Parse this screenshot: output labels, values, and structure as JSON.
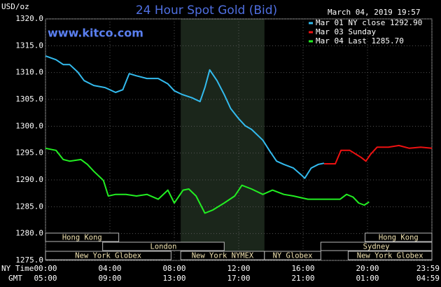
{
  "chart_data": {
    "type": "line",
    "title": "24 Hour Spot Gold (Bid)",
    "ylabel": "USD/oz",
    "timestamp": "March 04, 2019 19:57",
    "watermark": "www.kitco.com",
    "xaxis_label": "NY Time",
    "x2axis_label": "GMT",
    "xlim": [
      0,
      24
    ],
    "ylim": [
      1275,
      1320
    ],
    "yticks": [
      {
        "value": 1275,
        "label": "1275.0"
      },
      {
        "value": 1280,
        "label": "1280.0"
      },
      {
        "value": 1285,
        "label": "1285.0"
      },
      {
        "value": 1290,
        "label": "1290.0"
      },
      {
        "value": 1295,
        "label": "1295.0"
      },
      {
        "value": 1300,
        "label": "1300.0"
      },
      {
        "value": 1305,
        "label": "1305.0"
      },
      {
        "value": 1310,
        "label": "1310.0"
      },
      {
        "value": 1315,
        "label": "1315.0"
      },
      {
        "value": 1320,
        "label": "1320.0"
      }
    ],
    "xticks": [
      {
        "value": 0,
        "label": "00:00"
      },
      {
        "value": 4,
        "label": "04:00"
      },
      {
        "value": 8,
        "label": "08:00"
      },
      {
        "value": 12,
        "label": "12:00"
      },
      {
        "value": 16,
        "label": "16:00"
      },
      {
        "value": 20,
        "label": "20:00"
      },
      {
        "value": 24,
        "label": "23:59"
      }
    ],
    "x2ticks": [
      {
        "value": 0,
        "label": "05:00"
      },
      {
        "value": 4,
        "label": "09:00"
      },
      {
        "value": 8,
        "label": "13:00"
      },
      {
        "value": 12,
        "label": "17:00"
      },
      {
        "value": 16,
        "label": "21:00"
      },
      {
        "value": 20,
        "label": "01:00"
      },
      {
        "value": 24,
        "label": "04:59"
      }
    ],
    "grid": true,
    "highlight_x": [
      8.4,
      13.6
    ],
    "session_rows": [
      [
        {
          "label": "Hong Kong",
          "start": 0,
          "end": 4.55
        },
        {
          "label": "Hong Kong",
          "start": 19.85,
          "end": 24
        }
      ],
      [
        {
          "label": "London",
          "start": 3.55,
          "end": 11.1
        },
        {
          "label": "Sydney",
          "start": 17.1,
          "end": 24
        }
      ],
      [
        {
          "label": "New York Globex",
          "start": 0,
          "end": 7.8
        },
        {
          "label": "New York NYMEX",
          "start": 8.4,
          "end": 13.6
        },
        {
          "label": "NY Globex",
          "start": 13.6,
          "end": 17.1
        },
        {
          "label": "New York Globex",
          "start": 18.8,
          "end": 24
        }
      ]
    ],
    "series": [
      {
        "name": "Mar 01 NY close 1292.90",
        "color": "#33bbee",
        "x": [
          0,
          0.65,
          1.1,
          1.5,
          2.0,
          2.4,
          3.0,
          3.7,
          4.35,
          4.8,
          5.2,
          5.65,
          6.3,
          7.0,
          7.6,
          8.0,
          8.5,
          9.1,
          9.6,
          9.9,
          10.2,
          10.65,
          11.1,
          11.5,
          12.0,
          12.4,
          12.8,
          13.5,
          13.9,
          14.35,
          14.8,
          15.4,
          15.9,
          16.1,
          16.5,
          16.95,
          17.3
        ],
        "values": [
          1313.1,
          1312.4,
          1311.5,
          1311.5,
          1310.1,
          1308.5,
          1307.6,
          1307.2,
          1306.3,
          1306.8,
          1309.8,
          1309.4,
          1308.9,
          1308.9,
          1307.9,
          1306.6,
          1305.9,
          1305.3,
          1304.6,
          1307.2,
          1310.5,
          1308.5,
          1305.9,
          1303.3,
          1301.4,
          1300.1,
          1299.4,
          1297.4,
          1295.5,
          1293.5,
          1292.9,
          1292.2,
          1290.9,
          1290.3,
          1292.2,
          1292.9,
          1293.1
        ]
      },
      {
        "name": "Mar 03 Sunday",
        "color": "#ee1111",
        "x": [
          17.3,
          18.0,
          18.35,
          18.9,
          19.6,
          19.9,
          20.2,
          20.6,
          21.3,
          21.95,
          22.6,
          23.3,
          24.0
        ],
        "values": [
          1293.0,
          1293.0,
          1295.5,
          1295.5,
          1294.2,
          1293.5,
          1294.8,
          1296.1,
          1296.1,
          1296.4,
          1295.9,
          1296.1,
          1295.9
        ]
      },
      {
        "name": "Mar 04 Last 1285.70",
        "color": "#22ee22",
        "x": [
          0,
          0.65,
          1.1,
          1.5,
          2.2,
          2.6,
          3.0,
          3.6,
          3.9,
          4.35,
          5.0,
          5.65,
          6.3,
          7.0,
          7.6,
          8.0,
          8.55,
          8.9,
          9.35,
          9.9,
          10.4,
          11.1,
          11.75,
          12.2,
          12.8,
          13.5,
          14.1,
          14.8,
          15.4,
          16.3,
          17.2,
          18.3,
          18.7,
          19.1,
          19.45,
          19.8,
          20.1
        ],
        "values": [
          1295.9,
          1295.5,
          1293.8,
          1293.5,
          1293.8,
          1292.9,
          1291.6,
          1289.9,
          1287.0,
          1287.3,
          1287.3,
          1287.0,
          1287.3,
          1286.4,
          1288.1,
          1285.7,
          1288.1,
          1288.3,
          1287.0,
          1283.8,
          1284.4,
          1285.7,
          1287.0,
          1289.0,
          1288.3,
          1287.3,
          1288.1,
          1287.3,
          1287.0,
          1286.4,
          1286.4,
          1286.4,
          1287.3,
          1286.8,
          1285.7,
          1285.3,
          1285.9
        ]
      }
    ]
  }
}
